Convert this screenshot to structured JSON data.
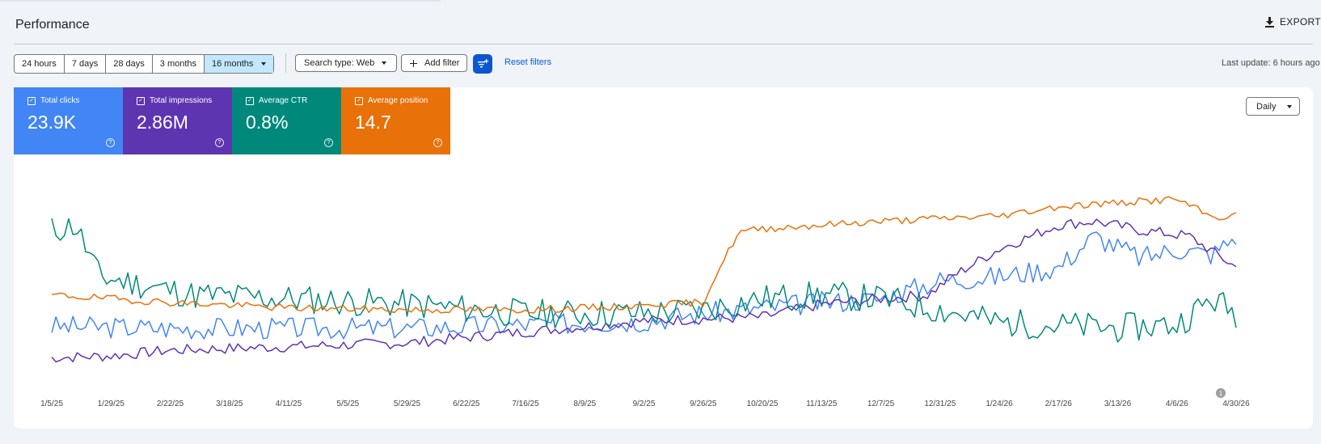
{
  "page": {
    "title": "Performance"
  },
  "export": {
    "label": "EXPORT",
    "icon": "download-icon"
  },
  "date_range": {
    "options": [
      "24 hours",
      "7 days",
      "28 days",
      "3 months",
      "16 months"
    ],
    "selected": "16 months"
  },
  "search_type": {
    "label": "Search type: Web"
  },
  "add_filter": {
    "label": "Add filter",
    "icon": "plus-icon"
  },
  "reset_filters": {
    "label": "Reset filters"
  },
  "last_update": {
    "text": "Last update: 6 hours ago"
  },
  "metrics": [
    {
      "label": "Total clicks",
      "value": "23.9K",
      "color": "#4285f4"
    },
    {
      "label": "Total impressions",
      "value": "2.86M",
      "color": "#5e35b1"
    },
    {
      "label": "Average CTR",
      "value": "0.8%",
      "color": "#00897b"
    },
    {
      "label": "Average position",
      "value": "14.7",
      "color": "#e8710a"
    }
  ],
  "granularity": {
    "selected": "Daily"
  },
  "annotation": {
    "label": "1"
  },
  "chart_data": {
    "type": "line",
    "x_tick_labels": [
      "1/5/25",
      "1/29/25",
      "2/22/25",
      "3/18/25",
      "4/11/25",
      "5/5/25",
      "5/29/25",
      "6/22/25",
      "7/16/25",
      "8/9/25",
      "9/2/25",
      "9/26/25",
      "10/20/25",
      "11/13/25",
      "12/7/25",
      "12/31/25",
      "1/24/26",
      "2/17/26",
      "3/13/26",
      "4/6/26",
      "4/30/26"
    ],
    "x_range": [
      "1/5/25",
      "5/4/26"
    ],
    "y_axis_visible": false,
    "grid": false,
    "series": [
      {
        "metric": "Total clicks",
        "color": "#4285f4",
        "anchors": [
          [
            0,
            0.23
          ],
          [
            0.1,
            0.22
          ],
          [
            0.2,
            0.22
          ],
          [
            0.3,
            0.22
          ],
          [
            0.4,
            0.24
          ],
          [
            0.5,
            0.26
          ],
          [
            0.55,
            0.3
          ],
          [
            0.6,
            0.33
          ],
          [
            0.65,
            0.36
          ],
          [
            0.7,
            0.38
          ],
          [
            0.75,
            0.48
          ],
          [
            0.8,
            0.5
          ],
          [
            0.85,
            0.55
          ],
          [
            0.88,
            0.72
          ],
          [
            0.92,
            0.6
          ],
          [
            0.95,
            0.65
          ],
          [
            0.98,
            0.62
          ],
          [
            1,
            0.72
          ]
        ],
        "noise": 0.06,
        "seed": 3
      },
      {
        "metric": "Total impressions",
        "color": "#5e35b1",
        "anchors": [
          [
            0,
            0.06
          ],
          [
            0.05,
            0.07
          ],
          [
            0.1,
            0.1
          ],
          [
            0.2,
            0.12
          ],
          [
            0.3,
            0.14
          ],
          [
            0.4,
            0.2
          ],
          [
            0.5,
            0.26
          ],
          [
            0.55,
            0.27
          ],
          [
            0.6,
            0.28
          ],
          [
            0.65,
            0.35
          ],
          [
            0.7,
            0.38
          ],
          [
            0.74,
            0.4
          ],
          [
            0.76,
            0.5
          ],
          [
            0.8,
            0.65
          ],
          [
            0.85,
            0.78
          ],
          [
            0.88,
            0.8
          ],
          [
            0.92,
            0.75
          ],
          [
            0.96,
            0.72
          ],
          [
            1,
            0.55
          ]
        ],
        "noise": 0.03,
        "seed": 7
      },
      {
        "metric": "Average CTR",
        "color": "#00897b",
        "anchors": [
          [
            0,
            0.75
          ],
          [
            0.02,
            0.78
          ],
          [
            0.04,
            0.5
          ],
          [
            0.08,
            0.45
          ],
          [
            0.12,
            0.4
          ],
          [
            0.2,
            0.38
          ],
          [
            0.3,
            0.35
          ],
          [
            0.4,
            0.3
          ],
          [
            0.5,
            0.3
          ],
          [
            0.55,
            0.32
          ],
          [
            0.6,
            0.38
          ],
          [
            0.65,
            0.4
          ],
          [
            0.7,
            0.38
          ],
          [
            0.75,
            0.32
          ],
          [
            0.8,
            0.25
          ],
          [
            0.9,
            0.22
          ],
          [
            0.95,
            0.24
          ],
          [
            0.98,
            0.38
          ],
          [
            1,
            0.3
          ]
        ],
        "noise": 0.08,
        "seed": 11
      },
      {
        "metric": "Average position",
        "color": "#e8710a",
        "anchors": [
          [
            0,
            0.4
          ],
          [
            0.05,
            0.38
          ],
          [
            0.1,
            0.36
          ],
          [
            0.2,
            0.33
          ],
          [
            0.3,
            0.32
          ],
          [
            0.4,
            0.32
          ],
          [
            0.5,
            0.34
          ],
          [
            0.5,
            0.36
          ],
          [
            0.52,
            0.35
          ],
          [
            0.55,
            0.36
          ],
          [
            0.56,
            0.5
          ],
          [
            0.58,
            0.74
          ],
          [
            0.6,
            0.76
          ],
          [
            0.65,
            0.78
          ],
          [
            0.7,
            0.8
          ],
          [
            0.8,
            0.83
          ],
          [
            0.85,
            0.88
          ],
          [
            0.9,
            0.9
          ],
          [
            0.95,
            0.92
          ],
          [
            0.98,
            0.82
          ],
          [
            1,
            0.83
          ]
        ],
        "noise": 0.02,
        "seed": 19
      }
    ]
  }
}
